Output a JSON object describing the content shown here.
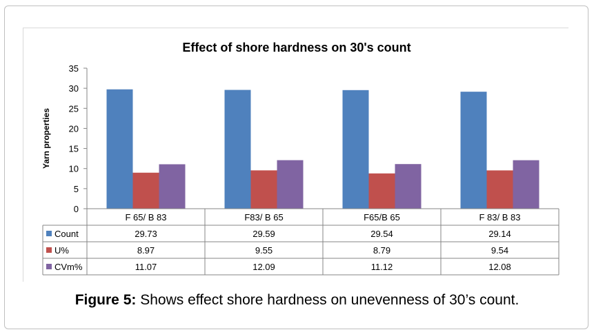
{
  "caption": {
    "label": "Figure 5:",
    "text": "Shows effect shore hardness on unevenness of 30’s count."
  },
  "chart_data": {
    "type": "bar",
    "title": "Effect of shore hardness on 30's count",
    "xlabel": "",
    "ylabel": "Yarn properties",
    "ylim": [
      0,
      35
    ],
    "yticks": [
      "0",
      "5",
      "10",
      "15",
      "20",
      "25",
      "30",
      "35"
    ],
    "categories": [
      "F 65/ B 83",
      "F83/ B 65",
      "F65/B 65",
      "F 83/ B 83"
    ],
    "grid": false,
    "legend": "data-table",
    "series": [
      {
        "name": "Count",
        "color": "#4f81bd",
        "values": [
          29.73,
          29.59,
          29.54,
          29.14
        ],
        "labels": [
          "29.73",
          "29.59",
          "29.54",
          "29.14"
        ]
      },
      {
        "name": "U%",
        "color": "#c0504d",
        "values": [
          8.97,
          9.55,
          8.79,
          9.54
        ],
        "labels": [
          "8.97",
          "9.55",
          "8.79",
          "9.54"
        ]
      },
      {
        "name": "CVm%",
        "color": "#8064a2",
        "values": [
          11.07,
          12.09,
          11.12,
          12.08
        ],
        "labels": [
          "11.07",
          "12.09",
          "11.12",
          "12.08"
        ]
      }
    ]
  }
}
